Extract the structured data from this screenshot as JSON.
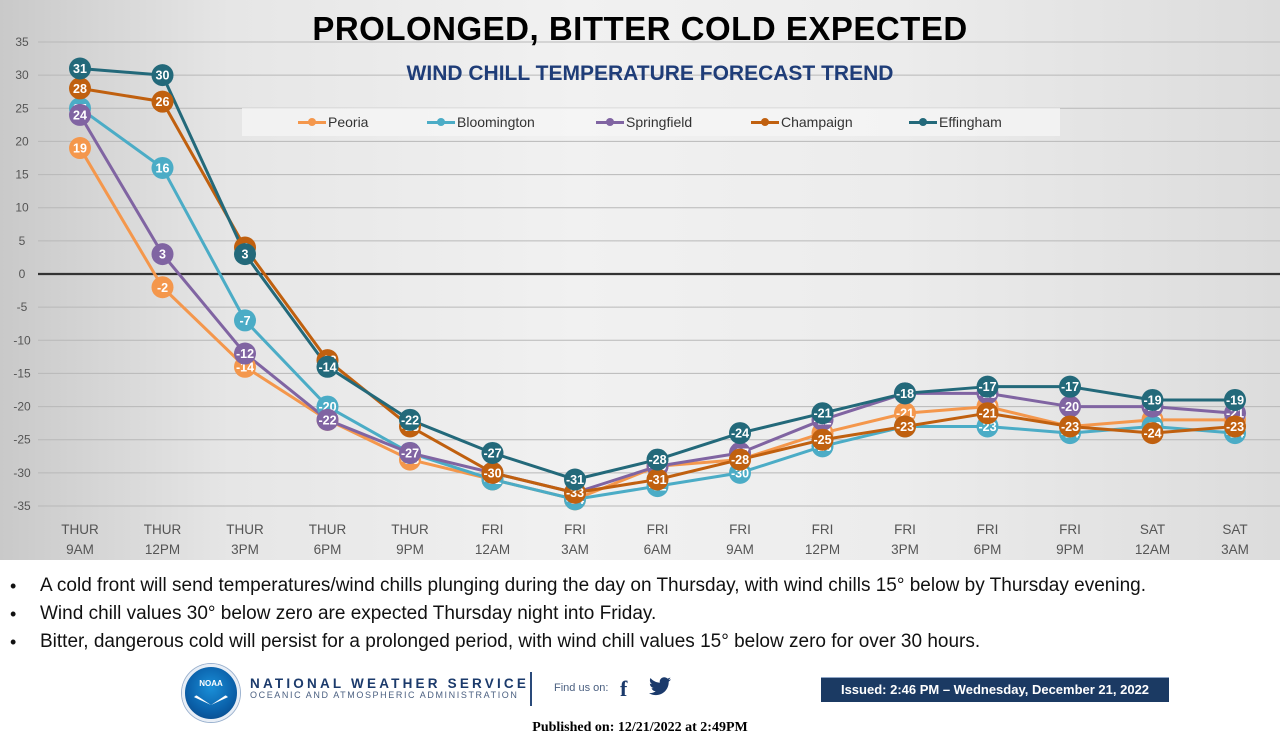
{
  "header": {
    "title": "PROLONGED, BITTER COLD EXPECTED"
  },
  "chart_data": {
    "type": "line",
    "title": "PROLONGED, BITTER COLD EXPECTED",
    "subtitle": "WIND CHILL TEMPERATURE FORECAST TREND",
    "xlabel": "",
    "ylabel": "",
    "ylim": [
      -35,
      35
    ],
    "yticks": [
      35,
      30,
      25,
      20,
      15,
      10,
      5,
      0,
      -5,
      -10,
      -15,
      -20,
      -25,
      -30,
      -35
    ],
    "grid": true,
    "legend_position": "top-center",
    "data_labels": true,
    "categories": [
      [
        "THUR",
        "9AM"
      ],
      [
        "THUR",
        "12PM"
      ],
      [
        "THUR",
        "3PM"
      ],
      [
        "THUR",
        "6PM"
      ],
      [
        "THUR",
        "9PM"
      ],
      [
        "FRI",
        "12AM"
      ],
      [
        "FRI",
        "3AM"
      ],
      [
        "FRI",
        "6AM"
      ],
      [
        "FRI",
        "9AM"
      ],
      [
        "FRI",
        "12PM"
      ],
      [
        "FRI",
        "3PM"
      ],
      [
        "FRI",
        "6PM"
      ],
      [
        "FRI",
        "9PM"
      ],
      [
        "SAT",
        "12AM"
      ],
      [
        "SAT",
        "3AM"
      ]
    ],
    "series": [
      {
        "name": "Peoria",
        "color": "#f4974c",
        "values": [
          19,
          -2,
          -14,
          -22,
          -28,
          -31,
          -34,
          -29,
          -28,
          -24,
          -21,
          -20,
          -23,
          -22,
          -22
        ]
      },
      {
        "name": "Bloomington",
        "color": "#4bacc6",
        "values": [
          25,
          16,
          -7,
          -20,
          -27,
          -31,
          -34,
          -32,
          -30,
          -26,
          -23,
          -23,
          -24,
          -23,
          -24
        ]
      },
      {
        "name": "Springfield",
        "color": "#8064a2",
        "values": [
          24,
          3,
          -12,
          -22,
          -27,
          -30,
          -33,
          -29,
          -27,
          -22,
          -18,
          -18,
          -20,
          -20,
          -21
        ]
      },
      {
        "name": "Champaign",
        "color": "#c0600f",
        "values": [
          28,
          26,
          4,
          -13,
          -23,
          -30,
          -33,
          -31,
          -28,
          -25,
          -23,
          -21,
          -23,
          -24,
          -23
        ]
      },
      {
        "name": "Effingham",
        "color": "#23697a",
        "values": [
          31,
          30,
          3,
          -14,
          -22,
          -27,
          -31,
          -28,
          -24,
          -21,
          -18,
          -17,
          -17,
          -19,
          -19
        ]
      }
    ]
  },
  "bullets": [
    "A cold front will send temperatures/wind chills plunging during the day on Thursday, with wind chills 15° below by Thursday evening.",
    "Wind chill values 30° below zero are expected Thursday night into Friday.",
    "Bitter, dangerous cold will persist for a prolonged period, with wind chill values 15° below zero for over 30 hours."
  ],
  "footer": {
    "logo_text": "NOAA",
    "agency_name": "NATIONAL WEATHER SERVICE",
    "agency_sub": "OCEANIC AND ATMOSPHERIC ADMINISTRATION",
    "find_us": "Find us on:",
    "facebook_glyph": "f",
    "issued": "Issued: 2:46 PM – Wednesday, December 21, 2022",
    "published": "Published on: 12/21/2022 at 2:49PM"
  }
}
